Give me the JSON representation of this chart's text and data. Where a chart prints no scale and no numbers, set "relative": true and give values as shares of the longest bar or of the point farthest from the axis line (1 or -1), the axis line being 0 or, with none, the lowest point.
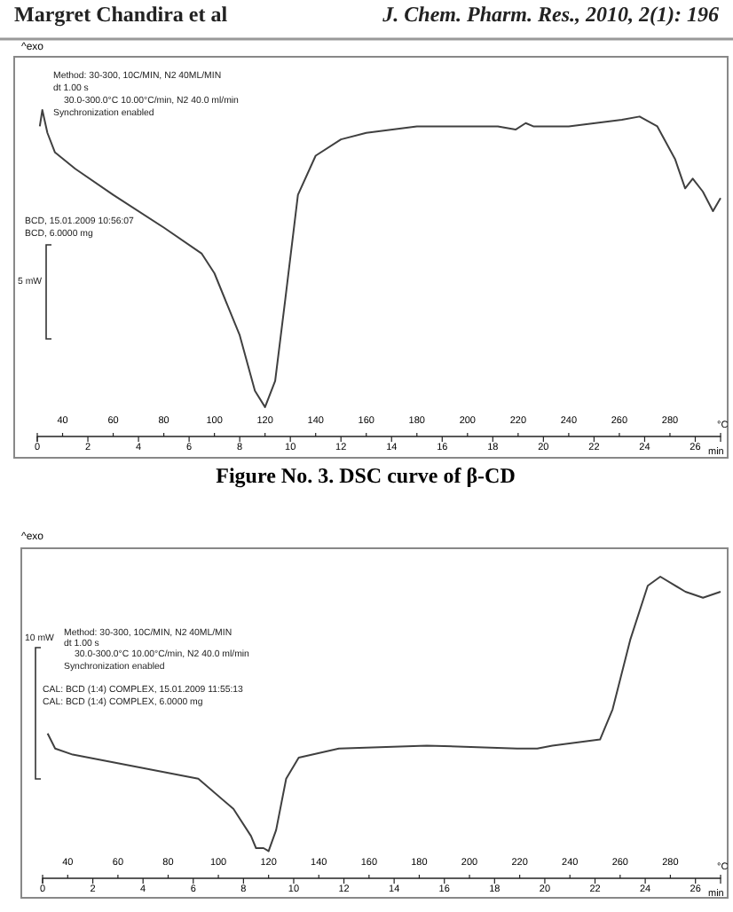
{
  "chart_data": [
    {
      "type": "line",
      "title": "Figure No. 3.  DSC curve of β-CD",
      "ylabel": "^exo",
      "xlabel": "min",
      "x2label": "°C",
      "relative": true,
      "xlim": [
        0,
        27
      ],
      "xticks": [
        0,
        2,
        4,
        6,
        8,
        10,
        12,
        14,
        16,
        18,
        20,
        22,
        24,
        26
      ],
      "x2lim": [
        30,
        300
      ],
      "x2ticks": [
        40,
        60,
        80,
        100,
        120,
        140,
        160,
        180,
        200,
        220,
        240,
        260,
        280
      ],
      "annotations": [
        "Margret Chandira et al",
        "J. Chem. Pharm. Res., 2010, 2(1): 196",
        "Method: 30-300, 10C/MIN, N2 40ML/MIN",
        "dt 1.00 s",
        "30.0-300.0°C 10.00°C/min, N2 40.0 ml/min",
        "Synchronization enabled",
        "BCD, 15.01.2009 10:56:07",
        "BCD, 6.0000 mg",
        "5 mW"
      ],
      "series": [
        {
          "color": "#404040",
          "x": [
            0.1,
            0.2,
            0.4,
            0.7,
            1.5,
            3,
            5,
            6.5,
            7,
            8,
            8.6,
            9,
            9.4,
            9.8,
            10.3,
            11,
            12,
            13,
            15,
            17,
            18.2,
            18.9,
            19.3,
            19.6,
            21,
            23.1,
            23.8,
            24.5,
            25.2,
            25.6,
            25.9,
            26.3,
            26.7,
            27
          ],
          "values": [
            0.95,
            1.0,
            0.93,
            0.87,
            0.82,
            0.74,
            0.64,
            0.56,
            0.5,
            0.31,
            0.14,
            0.09,
            0.17,
            0.42,
            0.74,
            0.86,
            0.91,
            0.93,
            0.95,
            0.95,
            0.95,
            0.94,
            0.96,
            0.95,
            0.95,
            0.97,
            0.98,
            0.95,
            0.85,
            0.76,
            0.79,
            0.75,
            0.69,
            0.73
          ]
        }
      ]
    },
    {
      "type": "line",
      "ylabel": "^exo",
      "xlabel": "min",
      "x2label": "°C",
      "relative": true,
      "xlim": [
        0,
        27
      ],
      "xticks": [
        0,
        2,
        4,
        6,
        8,
        10,
        12,
        14,
        16,
        18,
        20,
        22,
        24,
        26
      ],
      "x2lim": [
        30,
        300
      ],
      "x2ticks": [
        40,
        60,
        80,
        100,
        120,
        140,
        160,
        180,
        200,
        220,
        240,
        260,
        280
      ],
      "annotations": [
        "Method: 30-300, 10C/MIN, N2 40ML/MIN",
        "dt 1.00 s",
        "30.0-300.0°C 10.00°C/min, N2 40.0 ml/min",
        "Synchronization enabled",
        "10 mW",
        "CAL: BCD (1:4) COMPLEX, 15.01.2009 11:55:13",
        "CAL: BCD (1:4) COMPLEX, 6.0000 mg"
      ],
      "series": [
        {
          "color": "#404040",
          "x": [
            0.2,
            0.5,
            1.2,
            6.2,
            7.6,
            8.3,
            8.5,
            8.8,
            9,
            9.3,
            9.7,
            10.2,
            11.8,
            15.3,
            18.9,
            19.7,
            20.3,
            22.2,
            22.7,
            23.4,
            24.1,
            24.6,
            25.6,
            26.3,
            27
          ],
          "values": [
            0.48,
            0.43,
            0.41,
            0.33,
            0.23,
            0.14,
            0.1,
            0.1,
            0.09,
            0.16,
            0.33,
            0.4,
            0.43,
            0.44,
            0.43,
            0.43,
            0.44,
            0.46,
            0.56,
            0.79,
            0.97,
            1.0,
            0.95,
            0.93,
            0.95
          ]
        }
      ]
    }
  ]
}
